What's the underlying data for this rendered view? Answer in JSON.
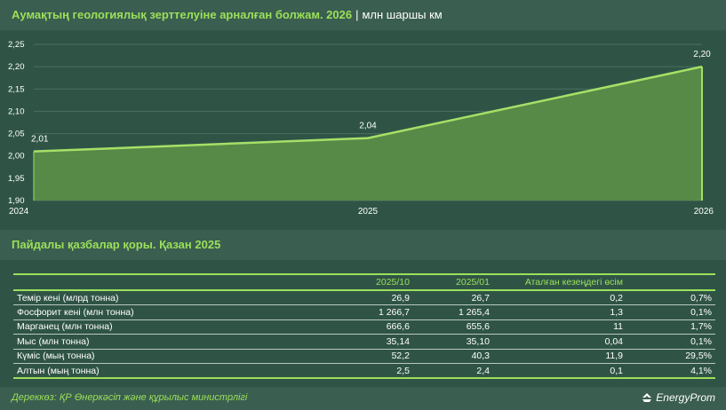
{
  "header": {
    "title": "Аумақтың геологиялық зерттелуіне арналған болжам. 2026",
    "separator": "|",
    "unit": "млн шаршы км"
  },
  "chart_data": {
    "type": "area",
    "x": [
      "2024",
      "2025",
      "2026"
    ],
    "values": [
      2.01,
      2.04,
      2.2
    ],
    "value_labels": [
      "2,01",
      "2,04",
      "2,20"
    ],
    "yticks": [
      "1,90",
      "1,95",
      "2,00",
      "2,05",
      "2,10",
      "2,15",
      "2,20",
      "2,25"
    ],
    "ytick_values": [
      1.9,
      1.95,
      2.0,
      2.05,
      2.1,
      2.15,
      2.2,
      2.25
    ],
    "ylim": [
      1.9,
      2.25
    ],
    "grid": true,
    "colors": {
      "fill": "#5a8c48",
      "line": "#a6e067",
      "grid": "#4b6e60"
    }
  },
  "section2": {
    "title": "Пайдалы қазбалар қоры. Қазан 2025"
  },
  "table": {
    "headers": [
      "",
      "2025/10",
      "2025/01",
      "Аталған кезеңдегі өсім",
      ""
    ],
    "rows": [
      [
        "Темір кені (млрд тонна)",
        "26,9",
        "26,7",
        "0,2",
        "0,7%"
      ],
      [
        "Фосфорит кені (млн тонна)",
        "1 266,7",
        "1 265,4",
        "1,3",
        "0,1%"
      ],
      [
        "Марганец (млн тонна)",
        "666,6",
        "655,6",
        "11",
        "1,7%"
      ],
      [
        "Мыс (млн тонна)",
        "35,14",
        "35,10",
        "0,04",
        "0,1%"
      ],
      [
        "Күміс (мың тонна)",
        "52,2",
        "40,3",
        "11,9",
        "29,5%"
      ],
      [
        "Алтын (мың тонна)",
        "2,5",
        "2,4",
        "0,1",
        "4,1%"
      ]
    ]
  },
  "footer": {
    "source": "Дереккөз: ҚР Өнеркәсіп және құрылыс министрлігі",
    "logo": "EnergyProm"
  },
  "colors": {
    "accent": "#9be05a",
    "background": "#2f5446",
    "header_bg": "#3a5e50"
  }
}
